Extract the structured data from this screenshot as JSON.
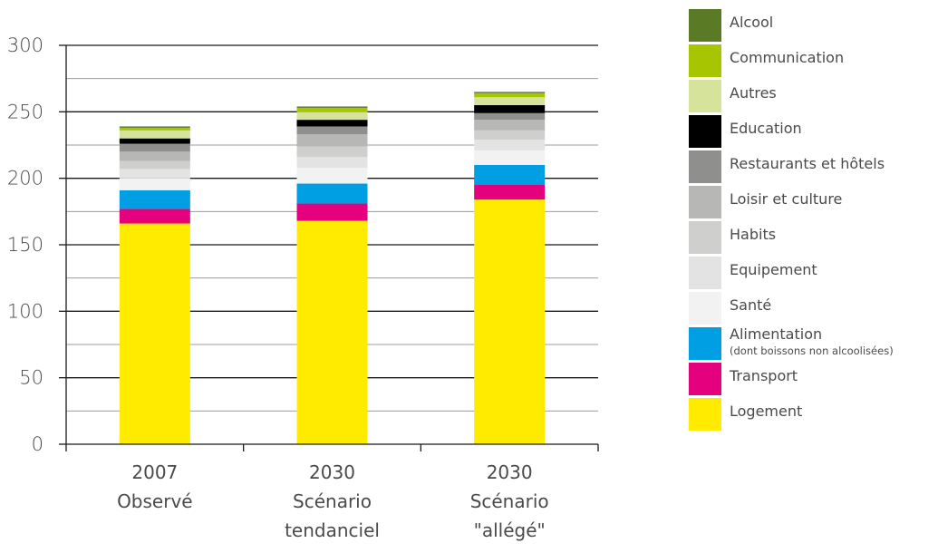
{
  "chart_data": {
    "type": "bar",
    "stacked": true,
    "categories": [
      [
        "2007",
        "Observé"
      ],
      [
        "2030",
        "Scénario",
        "tendanciel"
      ],
      [
        "2030",
        "Scénario",
        "\"allégé\""
      ]
    ],
    "ylim": [
      0,
      300
    ],
    "yticks": [
      0,
      50,
      100,
      150,
      200,
      250,
      300
    ],
    "grid": true,
    "legend_position": "right",
    "series": [
      {
        "name": "Logement",
        "color": "#ffeb00",
        "values": [
          166,
          168,
          184
        ]
      },
      {
        "name": "Transport",
        "color": "#e5007e",
        "values": [
          11,
          13,
          11
        ]
      },
      {
        "name": "Alimentation",
        "subtitle": "(dont boissons non alcoolisées)",
        "color": "#009fe3",
        "values": [
          14,
          15,
          15
        ]
      },
      {
        "name": "Santé",
        "color": "#f2f2f2",
        "values": [
          9,
          12,
          11
        ]
      },
      {
        "name": "Equipement",
        "color": "#e3e3e3",
        "values": [
          7,
          8,
          8
        ]
      },
      {
        "name": "Habits",
        "color": "#cfcfcd",
        "values": [
          6,
          8,
          7
        ]
      },
      {
        "name": "Loisir et culture",
        "color": "#b7b7b5",
        "values": [
          7,
          9,
          8
        ]
      },
      {
        "name": "Restaurants et hôtels",
        "color": "#8f8f8d",
        "values": [
          6,
          6,
          5
        ]
      },
      {
        "name": "Education",
        "color": "#000000",
        "values": [
          4,
          5,
          6
        ]
      },
      {
        "name": "Autres",
        "color": "#d5e39b",
        "values": [
          6,
          6,
          6
        ]
      },
      {
        "name": "Communication",
        "color": "#a7c500",
        "values": [
          2,
          3,
          3
        ]
      },
      {
        "name": "Alcool",
        "color": "#5b7a26",
        "values": [
          1,
          1,
          1
        ]
      }
    ]
  }
}
